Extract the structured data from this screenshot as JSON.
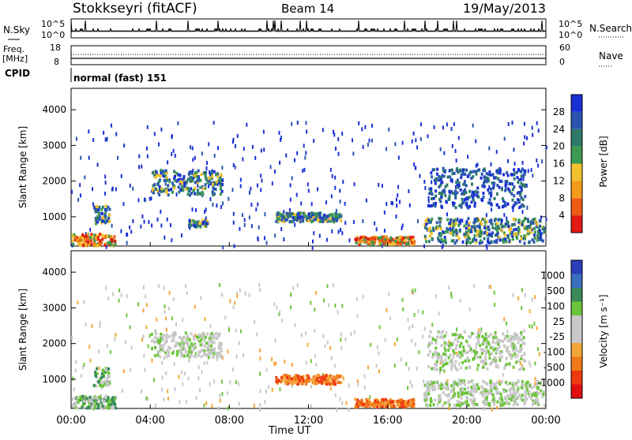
{
  "header": {
    "station": "Stokkseyri (fitACF)",
    "beam": "Beam 14",
    "date": "19/May/2013"
  },
  "status_panels": {
    "nsky_label": "N.Sky",
    "nsearch_label": "N.Search",
    "freq_label_1": "Freq.",
    "freq_label_2": "[MHz]",
    "nave_label": "Nave",
    "cpid_label": "CPID",
    "cpid_value": "normal (fast) 151",
    "left_ticks_nsky": [
      "10^5",
      "10^0"
    ],
    "right_ticks_nsky": [
      "10^5",
      "10^0"
    ],
    "left_ticks_freq": [
      "18",
      "8"
    ],
    "right_ticks_nave": [
      "60",
      "0"
    ]
  },
  "colors": {
    "power_scale": [
      "#1a2fd6",
      "#2a55b0",
      "#2e7a6a",
      "#3c9a52",
      "#f2c12e",
      "#f39a1a",
      "#ef5a14",
      "#e11a12"
    ],
    "velocity_scale": [
      "#2a3fb8",
      "#3a6fc0",
      "#3a8a5a",
      "#6cc43a",
      "#c8c8c8",
      "#c8c8c8",
      "#f4a63a",
      "#f07a1a",
      "#ee3a12",
      "#e01010"
    ]
  },
  "chart_data": [
    {
      "type": "heatmap",
      "panel": "power",
      "ylabel": "Slant Range [km]",
      "xlabel": "",
      "ylim": [
        180,
        4600
      ],
      "xlim_hours": [
        0,
        24
      ],
      "y_ticks": [
        "1000",
        "2000",
        "3000",
        "4000"
      ],
      "colorbar": {
        "label": "Power [dB]",
        "ticks": [
          "4",
          "8",
          "12",
          "16",
          "20",
          "24",
          "28"
        ]
      },
      "features": [
        {
          "t0": 0.0,
          "t1": 2.2,
          "r0": 230,
          "r1": 560,
          "level": "high"
        },
        {
          "t0": 1.1,
          "t1": 1.9,
          "r0": 850,
          "r1": 1350,
          "level": "mid"
        },
        {
          "t0": 4.0,
          "t1": 7.6,
          "r0": 1650,
          "r1": 2350,
          "level": "mid"
        },
        {
          "t0": 5.9,
          "t1": 6.9,
          "r0": 750,
          "r1": 950,
          "level": "mid"
        },
        {
          "t0": 10.3,
          "t1": 13.6,
          "r0": 900,
          "r1": 1150,
          "level": "mid"
        },
        {
          "t0": 14.3,
          "t1": 17.3,
          "r0": 260,
          "r1": 480,
          "level": "high"
        },
        {
          "t0": 18.0,
          "t1": 22.9,
          "r0": 1300,
          "r1": 2400,
          "level": "low"
        },
        {
          "t0": 17.8,
          "t1": 23.9,
          "r0": 300,
          "r1": 1000,
          "level": "mid"
        }
      ]
    },
    {
      "type": "heatmap",
      "panel": "velocity",
      "ylabel": "Slant Range [km]",
      "xlabel": "Time UT",
      "ylim": [
        180,
        4600
      ],
      "xlim_hours": [
        0,
        24
      ],
      "x_ticks": [
        "00:00",
        "04:00",
        "08:00",
        "12:00",
        "16:00",
        "20:00",
        "00:00"
      ],
      "y_ticks": [
        "1000",
        "2000",
        "3000",
        "4000"
      ],
      "colorbar": {
        "label": "Velocity [m s⁻¹]",
        "ticks": [
          "1000",
          "500",
          "100",
          "25",
          "-25",
          "-100",
          "-500",
          "-1000"
        ]
      },
      "features": [
        {
          "t0": 0.0,
          "t1": 2.2,
          "r0": 230,
          "r1": 560,
          "v": "green"
        },
        {
          "t0": 1.1,
          "t1": 1.9,
          "r0": 850,
          "r1": 1350,
          "v": "green"
        },
        {
          "t0": 4.0,
          "t1": 7.6,
          "r0": 1650,
          "r1": 2350,
          "v": "grey"
        },
        {
          "t0": 10.3,
          "t1": 13.6,
          "r0": 900,
          "r1": 1150,
          "v": "orange"
        },
        {
          "t0": 14.3,
          "t1": 17.3,
          "r0": 260,
          "r1": 480,
          "v": "orange"
        },
        {
          "t0": 18.0,
          "t1": 22.9,
          "r0": 1300,
          "r1": 2400,
          "v": "grey"
        },
        {
          "t0": 17.8,
          "t1": 23.9,
          "r0": 300,
          "r1": 1000,
          "v": "grey"
        }
      ]
    }
  ]
}
